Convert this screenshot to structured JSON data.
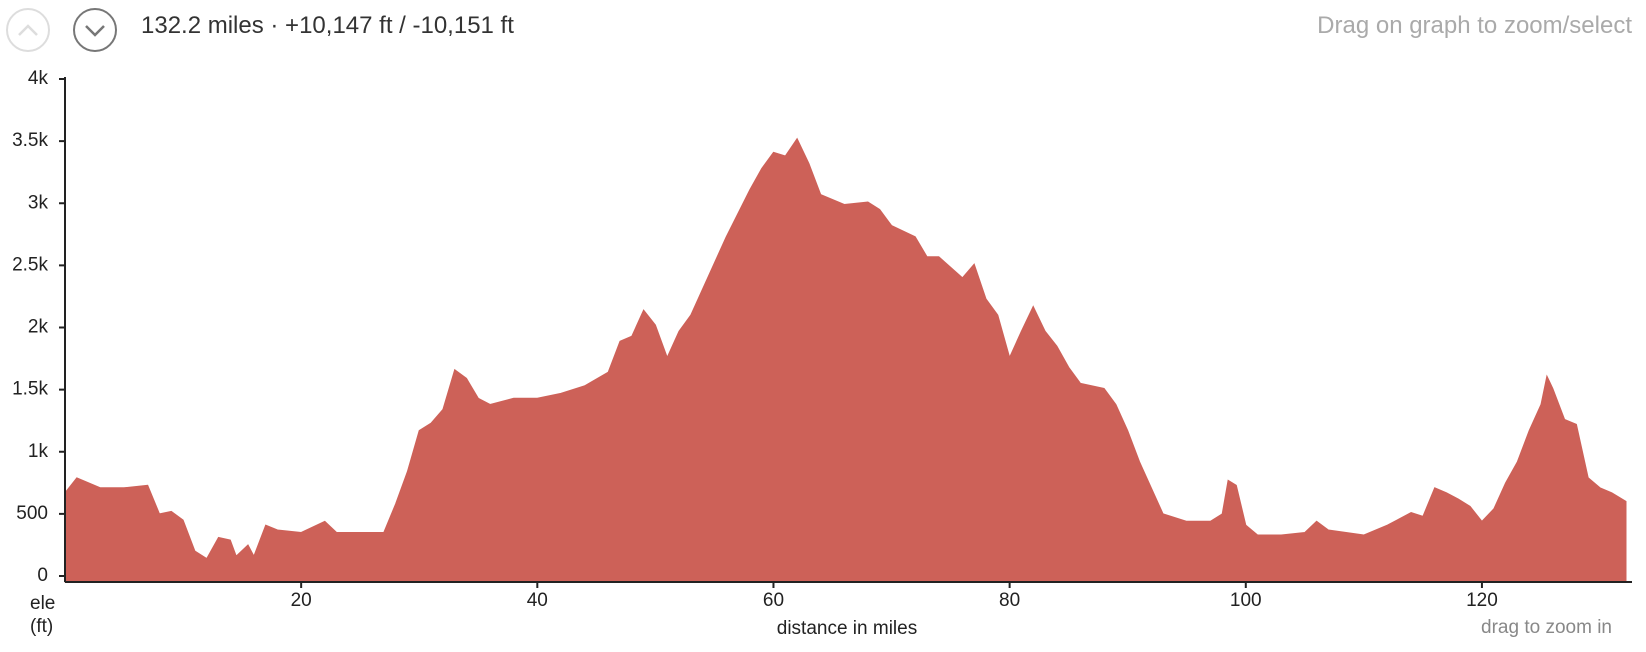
{
  "header": {
    "summary": "132.2 miles · +10,147 ft / -10,151 ft",
    "hint": "Drag on graph to zoom/select"
  },
  "chart_data": {
    "type": "area",
    "xlabel": "distance in miles",
    "ylabel": "ele (ft)",
    "note": "drag to zoom in",
    "color": "#cd6158",
    "x": [
      0,
      1,
      3,
      5,
      7,
      8,
      9,
      10,
      11,
      12,
      13,
      14,
      14.5,
      15.5,
      16,
      17,
      18,
      20,
      22,
      23,
      25,
      27,
      28,
      29,
      30,
      31,
      32,
      33,
      34,
      35,
      36,
      38,
      40,
      42,
      44,
      46,
      47,
      48,
      49,
      50,
      51,
      52,
      53,
      54,
      56,
      58,
      59,
      60,
      61,
      62,
      63,
      64,
      66,
      68,
      69,
      70,
      72,
      73,
      74,
      76,
      77,
      78,
      79,
      80,
      81,
      82,
      83,
      84,
      85,
      86,
      88,
      89,
      90,
      91,
      92,
      93,
      95,
      97,
      98,
      98.5,
      99.2,
      100,
      101,
      103,
      105,
      106,
      107,
      110,
      112,
      114,
      115,
      116,
      117,
      118,
      119,
      120,
      121,
      122,
      123,
      124,
      125,
      125.5,
      126,
      127,
      128,
      129,
      130,
      131,
      132.2
    ],
    "values": [
      670,
      790,
      710,
      710,
      730,
      500,
      520,
      450,
      200,
      140,
      310,
      290,
      160,
      250,
      160,
      410,
      370,
      350,
      440,
      350,
      350,
      350,
      580,
      840,
      1170,
      1230,
      1340,
      1660,
      1590,
      1430,
      1380,
      1430,
      1430,
      1470,
      1530,
      1640,
      1890,
      1930,
      2140,
      2020,
      1760,
      1970,
      2100,
      2310,
      2730,
      3110,
      3280,
      3410,
      3380,
      3520,
      3320,
      3070,
      2990,
      3010,
      2950,
      2820,
      2730,
      2570,
      2570,
      2400,
      2510,
      2230,
      2100,
      1760,
      1970,
      2170,
      1970,
      1850,
      1680,
      1550,
      1510,
      1380,
      1170,
      920,
      710,
      500,
      440,
      440,
      500,
      770,
      730,
      410,
      330,
      330,
      350,
      440,
      370,
      330,
      410,
      510,
      480,
      710,
      670,
      620,
      560,
      440,
      540,
      750,
      920,
      1170,
      1380,
      1610,
      1510,
      1260,
      1220,
      790,
      710,
      670,
      600
    ],
    "xlim": [
      0,
      132.2
    ],
    "xticks": [
      20,
      40,
      60,
      80,
      100,
      120
    ],
    "ylim": [
      0,
      4000
    ],
    "yticks": [
      0,
      500,
      {
        "value": 1000,
        "label": "1k"
      },
      {
        "value": 1500,
        "label": "1.5k"
      },
      {
        "value": 2000,
        "label": "2k"
      },
      {
        "value": 2500,
        "label": "2.5k"
      },
      {
        "value": 3000,
        "label": "3k"
      },
      {
        "value": 3500,
        "label": "3.5k"
      },
      {
        "value": 4000,
        "label": "4k"
      }
    ]
  }
}
